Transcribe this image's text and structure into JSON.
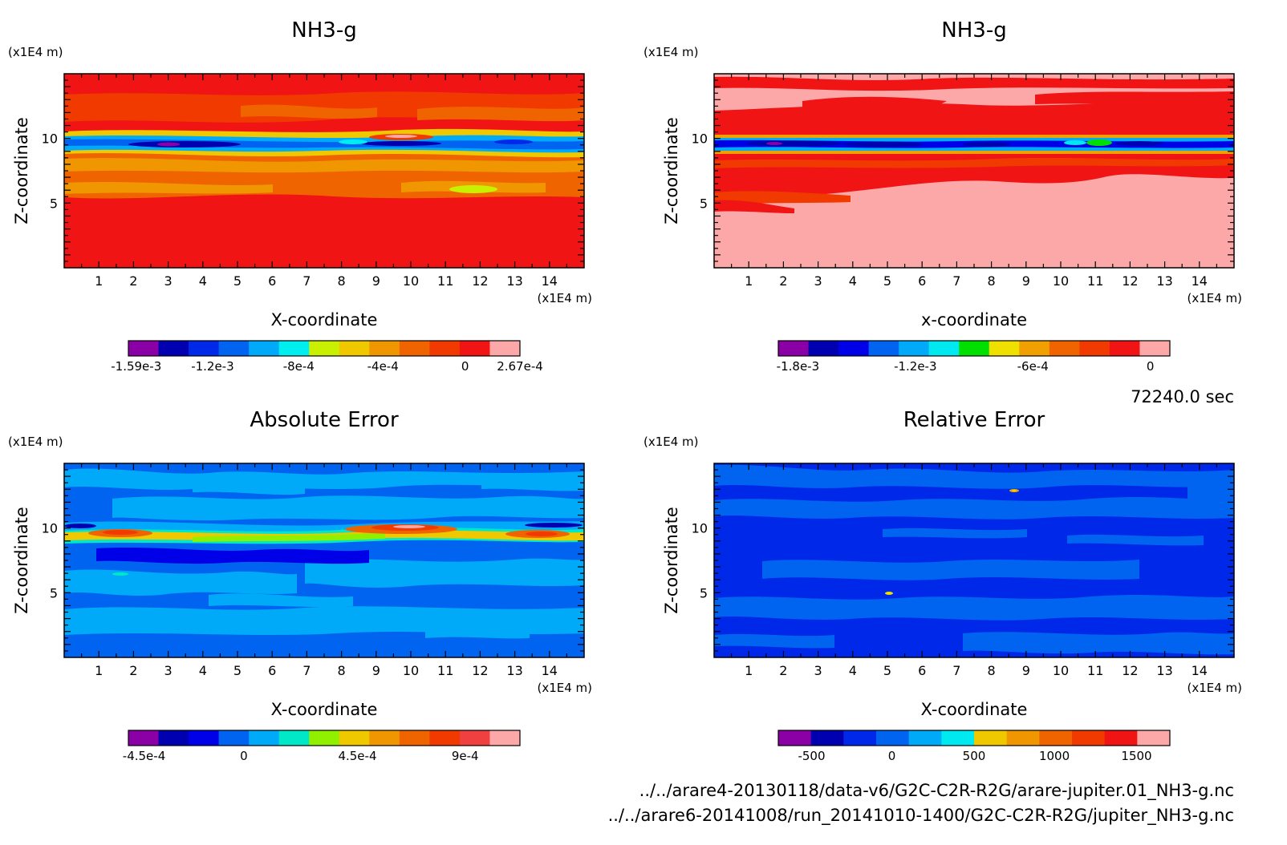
{
  "panels": [
    {
      "id": "p1",
      "title": "NH3-g",
      "z_unit": "(x1E4 m)",
      "x_unit": "(x1E4 m)",
      "xlabel": "X-coordinate",
      "ylabel": "Z-coordinate",
      "x_ticks": [
        "1",
        "2",
        "3",
        "4",
        "5",
        "6",
        "7",
        "8",
        "9",
        "10",
        "11",
        "12",
        "13",
        "14"
      ],
      "z_ticks": [
        "5",
        "10"
      ],
      "colorbar": {
        "colors": [
          "#8a00a6",
          "#0000b0",
          "#0028e8",
          "#0064f0",
          "#00aaf8",
          "#00eef0",
          "#c8f000",
          "#f0c800",
          "#f09600",
          "#f06400",
          "#f03a00",
          "#f01414",
          "#fca8a8"
        ],
        "labels": [
          "-1.59e-3",
          "-1.2e-3",
          "-8e-4",
          "-4e-4",
          "0",
          "2.67e-4"
        ]
      }
    },
    {
      "id": "p2",
      "title": "NH3-g",
      "z_unit": "(x1E4 m)",
      "x_unit": "(x1E4 m)",
      "xlabel": "x-coordinate",
      "ylabel": "Z-coordinate",
      "x_ticks": [
        "1",
        "2",
        "3",
        "4",
        "5",
        "6",
        "7",
        "8",
        "9",
        "10",
        "11",
        "12",
        "13",
        "14"
      ],
      "z_ticks": [
        "5",
        "10"
      ],
      "colorbar": {
        "colors": [
          "#8a00a6",
          "#0000b0",
          "#0000e8",
          "#0064f0",
          "#00aaf8",
          "#00e8f0",
          "#00e000",
          "#f0e000",
          "#f0a000",
          "#f06400",
          "#f03a00",
          "#f01414",
          "#fca8a8"
        ],
        "labels": [
          "-1.8e-3",
          "-1.2e-3",
          "-6e-4",
          "0"
        ]
      }
    },
    {
      "id": "p3",
      "title": "Absolute Error",
      "z_unit": "(x1E4 m)",
      "x_unit": "(x1E4 m)",
      "xlabel": "X-coordinate",
      "ylabel": "Z-coordinate",
      "x_ticks": [
        "1",
        "2",
        "3",
        "4",
        "5",
        "6",
        "7",
        "8",
        "9",
        "10",
        "11",
        "12",
        "13",
        "14"
      ],
      "z_ticks": [
        "5",
        "10"
      ],
      "colorbar": {
        "colors": [
          "#8a00a6",
          "#0000b0",
          "#0000e8",
          "#0064f0",
          "#00aaf8",
          "#00e8c8",
          "#90f000",
          "#f0c800",
          "#f09600",
          "#f06400",
          "#f03a00",
          "#f04040",
          "#fca8a8"
        ],
        "labels": [
          "-4.5e-4",
          "0",
          "4.5e-4",
          "9e-4"
        ]
      }
    },
    {
      "id": "p4",
      "title": "Relative Error",
      "z_unit": "(x1E4 m)",
      "x_unit": "(x1E4 m)",
      "xlabel": "X-coordinate",
      "ylabel": "Z-coordinate",
      "x_ticks": [
        "1",
        "2",
        "3",
        "4",
        "5",
        "6",
        "7",
        "8",
        "9",
        "10",
        "11",
        "12",
        "13",
        "14"
      ],
      "z_ticks": [
        "5",
        "10"
      ],
      "colorbar": {
        "colors": [
          "#8a00a6",
          "#0000b0",
          "#0028e8",
          "#0064f0",
          "#00aaf8",
          "#00e8f0",
          "#f0c800",
          "#f09600",
          "#f06400",
          "#f03a00",
          "#f01414",
          "#fca8a8"
        ],
        "labels": [
          "-500",
          "0",
          "500",
          "1000",
          "1500"
        ]
      }
    }
  ],
  "time_label": "72240.0 sec",
  "file_paths": [
    "../../arare4-20130118/data-v6/G2C-C2R-R2G/arare-jupiter.01_NH3-g.nc",
    "../../arare6-20141008/run_20141010-1400/G2C-C2R-R2G/jupiter_NH3-g.nc"
  ],
  "chart_data": [
    {
      "type": "heatmap",
      "title": "NH3-g",
      "xlabel": "X-coordinate",
      "ylabel": "Z-coordinate",
      "x_unit": "(x1E4 m)",
      "z_unit": "(x1E4 m)",
      "xlim": [
        0,
        15
      ],
      "zlim": [
        0,
        15
      ],
      "colorbar_labels": [
        "-1.59e-3",
        "-1.2e-3",
        "-8e-4",
        "-4e-4",
        "0",
        "2.67e-4"
      ]
    },
    {
      "type": "heatmap",
      "title": "NH3-g",
      "xlabel": "x-coordinate",
      "ylabel": "Z-coordinate",
      "x_unit": "(x1E4 m)",
      "z_unit": "(x1E4 m)",
      "xlim": [
        0,
        15
      ],
      "zlim": [
        0,
        15
      ],
      "colorbar_labels": [
        "-1.8e-3",
        "-1.2e-3",
        "-6e-4",
        "0"
      ]
    },
    {
      "type": "heatmap",
      "title": "Absolute Error",
      "xlabel": "X-coordinate",
      "ylabel": "Z-coordinate",
      "x_unit": "(x1E4 m)",
      "z_unit": "(x1E4 m)",
      "xlim": [
        0,
        15
      ],
      "zlim": [
        0,
        15
      ],
      "colorbar_labels": [
        "-4.5e-4",
        "0",
        "4.5e-4",
        "9e-4"
      ]
    },
    {
      "type": "heatmap",
      "title": "Relative Error",
      "xlabel": "X-coordinate",
      "ylabel": "Z-coordinate",
      "x_unit": "(x1E4 m)",
      "z_unit": "(x1E4 m)",
      "xlim": [
        0,
        15
      ],
      "zlim": [
        0,
        15
      ],
      "colorbar_labels": [
        "-500",
        "0",
        "500",
        "1000",
        "1500"
      ]
    }
  ]
}
